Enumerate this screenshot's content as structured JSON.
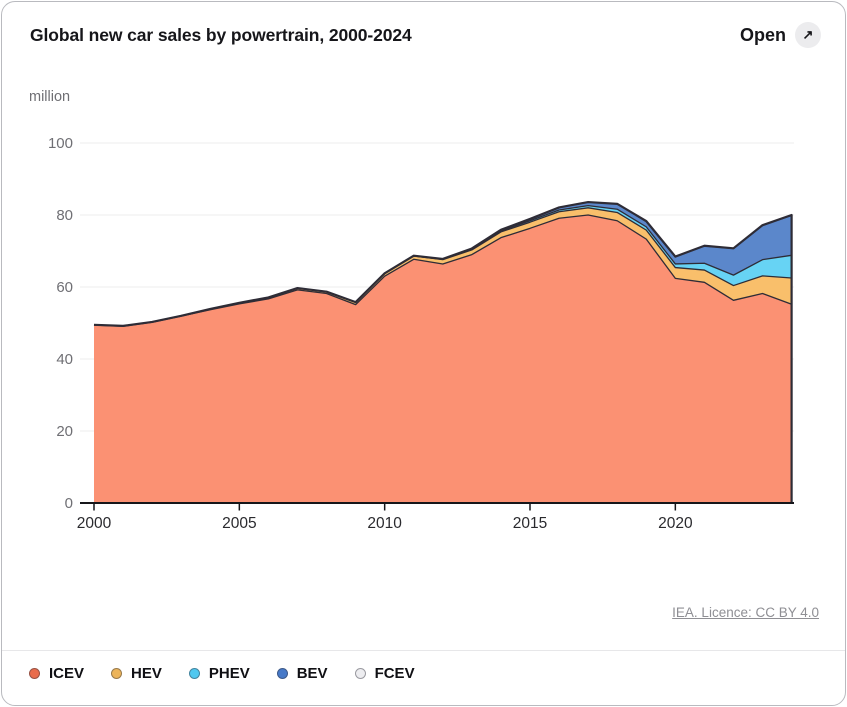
{
  "header": {
    "title": "Global new car sales by powertrain, 2000-2024",
    "open_label": "Open",
    "open_icon": "↗"
  },
  "unit_label": "million",
  "attribution": {
    "text": "IEA. Licence: CC BY 4.0"
  },
  "legend": [
    {
      "label": "ICEV",
      "dot_color": "#E96C4C"
    },
    {
      "label": "HEV",
      "dot_color": "#ECB45A"
    },
    {
      "label": "PHEV",
      "dot_color": "#50C8F0"
    },
    {
      "label": "BEV",
      "dot_color": "#4679C8"
    },
    {
      "label": "FCEV",
      "dot_color": "#EDEDF0"
    }
  ],
  "chart_data": {
    "type": "area",
    "stacked": true,
    "title": "Global new car sales by powertrain, 2000-2024",
    "xlabel": "",
    "ylabel": "million",
    "ylim": [
      0,
      100
    ],
    "y_ticks": [
      0,
      20,
      40,
      60,
      80,
      100
    ],
    "x_ticks": [
      2000,
      2005,
      2010,
      2015,
      2020
    ],
    "grid": true,
    "legend_position": "bottom",
    "x": [
      2000,
      2001,
      2002,
      2003,
      2004,
      2005,
      2006,
      2007,
      2008,
      2009,
      2010,
      2011,
      2012,
      2013,
      2014,
      2015,
      2016,
      2017,
      2018,
      2019,
      2020,
      2021,
      2022,
      2023,
      2024
    ],
    "series": [
      {
        "name": "ICEV",
        "color": "#FB9173",
        "values": [
          49.4,
          49.1,
          50.2,
          51.9,
          53.7,
          55.3,
          56.7,
          59.2,
          58.2,
          55.1,
          63.0,
          67.7,
          66.4,
          69.0,
          73.7,
          76.3,
          79.1,
          80.0,
          78.4,
          73.3,
          62.4,
          61.3,
          56.3,
          58.2,
          55.2
        ]
      },
      {
        "name": "HEV",
        "color": "#F9BF6B",
        "values": [
          0.1,
          0.1,
          0.1,
          0.1,
          0.2,
          0.3,
          0.4,
          0.5,
          0.5,
          0.7,
          0.8,
          0.9,
          1.2,
          1.3,
          1.6,
          1.7,
          1.8,
          2.0,
          2.3,
          2.5,
          3.0,
          3.4,
          4.1,
          4.9,
          7.3
        ]
      },
      {
        "name": "PHEV",
        "color": "#67D3F4",
        "values": [
          0,
          0,
          0,
          0,
          0,
          0,
          0,
          0,
          0,
          0,
          0,
          0,
          0.1,
          0.2,
          0.3,
          0.4,
          0.5,
          0.6,
          0.9,
          0.9,
          1.0,
          1.9,
          2.9,
          4.5,
          6.3
        ]
      },
      {
        "name": "BEV",
        "color": "#5B87CB",
        "values": [
          0,
          0,
          0,
          0,
          0,
          0,
          0,
          0,
          0,
          0,
          0,
          0.1,
          0.1,
          0.2,
          0.3,
          0.5,
          0.7,
          1.0,
          1.5,
          1.6,
          2.0,
          4.8,
          7.4,
          9.5,
          11.1
        ]
      },
      {
        "name": "FCEV",
        "color": "#F5F5F7",
        "values": [
          0,
          0,
          0,
          0,
          0,
          0,
          0,
          0,
          0,
          0,
          0,
          0,
          0,
          0,
          0,
          0,
          0,
          0,
          0,
          0,
          0.05,
          0.05,
          0.05,
          0.08,
          0.1
        ]
      }
    ]
  }
}
